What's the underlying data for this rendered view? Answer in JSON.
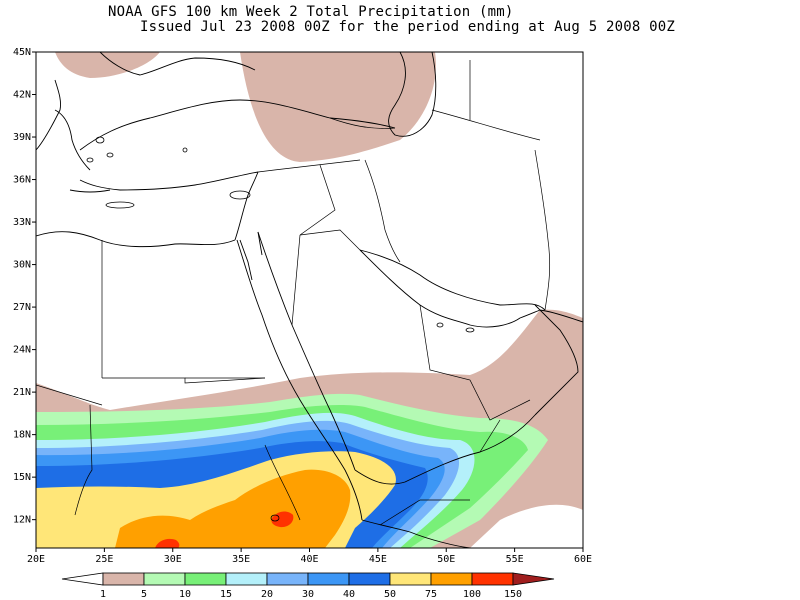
{
  "header": {
    "title_line1": "NOAA GFS 100 km Week 2 Total Precipitation (mm)",
    "title_line2": "Issued Jul 23 2008 00Z for the period ending at Aug 5 2008 00Z"
  },
  "map": {
    "lon_range": [
      20,
      60
    ],
    "lat_range": [
      10,
      45
    ],
    "lat_labels": [
      "45N",
      "42N",
      "39N",
      "36N",
      "33N",
      "30N",
      "27N",
      "24N",
      "21N",
      "18N",
      "15N",
      "12N"
    ],
    "lat_values": [
      45,
      42,
      39,
      36,
      33,
      30,
      27,
      24,
      21,
      18,
      15,
      12
    ],
    "lon_labels": [
      "20E",
      "25E",
      "30E",
      "35E",
      "40E",
      "45E",
      "50E",
      "55E",
      "60E"
    ],
    "lon_values": [
      20,
      25,
      30,
      35,
      40,
      45,
      50,
      55,
      60
    ]
  },
  "legend": {
    "labels": [
      "1",
      "5",
      "10",
      "15",
      "20",
      "30",
      "40",
      "50",
      "75",
      "100",
      "150"
    ],
    "colors": [
      "#ffffff",
      "#d9b5aa",
      "#b4fab4",
      "#78f078",
      "#b4f0fa",
      "#78b4fa",
      "#3c96f5",
      "#1e6ee6",
      "#ffe678",
      "#ffa000",
      "#ff3200",
      "#a01e1e"
    ]
  },
  "colors": {
    "c1": "#d9b5aa",
    "c5": "#b4fab4",
    "c10": "#78f078",
    "c15": "#b4f0fa",
    "c20": "#78b4fa",
    "c30": "#3c96f5",
    "c40": "#1e6ee6",
    "c50": "#ffe678",
    "c75": "#ffa000",
    "c100": "#ff3200"
  }
}
